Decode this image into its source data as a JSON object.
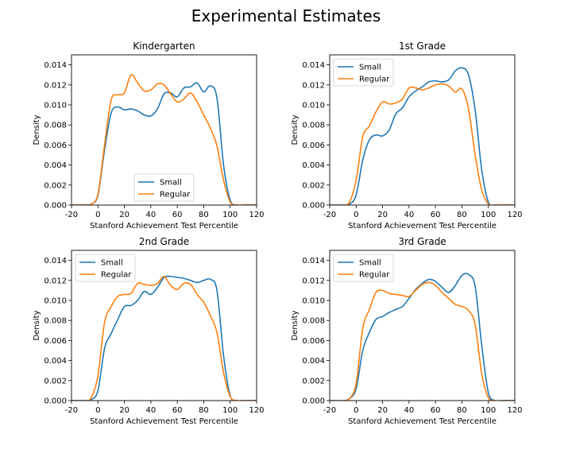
{
  "figure_title": "Experimental Estimates",
  "series_colors": {
    "Small": "#1f77b4",
    "Regular": "#ff7f0e"
  },
  "chart_data": [
    {
      "type": "line",
      "title": "Kindergarten",
      "xlabel": "Stanford Achievement Test Percentile",
      "ylabel": "Density",
      "xlim": [
        -20,
        120
      ],
      "ylim": [
        0,
        0.015
      ],
      "xticks": [
        -20,
        0,
        20,
        40,
        60,
        80,
        100,
        120
      ],
      "yticks": [
        0.0,
        0.002,
        0.004,
        0.006,
        0.008,
        0.01,
        0.012,
        0.014
      ],
      "legend_position": "lower-center",
      "x": [
        -20,
        -10,
        -5,
        0,
        5,
        10,
        15,
        20,
        25,
        30,
        35,
        40,
        45,
        50,
        55,
        60,
        65,
        70,
        75,
        80,
        85,
        90,
        95,
        100,
        105,
        110,
        120
      ],
      "series": [
        {
          "name": "Small",
          "values": [
            0,
            0,
            0.0001,
            0.001,
            0.0055,
            0.0092,
            0.0098,
            0.0095,
            0.0096,
            0.0094,
            0.009,
            0.0089,
            0.0096,
            0.0111,
            0.0112,
            0.0108,
            0.0117,
            0.0118,
            0.0122,
            0.0113,
            0.0119,
            0.0107,
            0.004,
            0.0005,
            0,
            0,
            0
          ]
        },
        {
          "name": "Regular",
          "values": [
            0,
            0,
            0.0001,
            0.0011,
            0.006,
            0.0105,
            0.011,
            0.0112,
            0.013,
            0.0122,
            0.0114,
            0.0115,
            0.0121,
            0.012,
            0.0111,
            0.0103,
            0.0106,
            0.0112,
            0.0103,
            0.009,
            0.0077,
            0.0059,
            0.0025,
            0.0003,
            0,
            0,
            0
          ]
        }
      ]
    },
    {
      "type": "line",
      "title": "1st Grade",
      "xlabel": "Stanford Achievement Test Percentile",
      "ylabel": "Density",
      "xlim": [
        -20,
        120
      ],
      "ylim": [
        0,
        0.015
      ],
      "xticks": [
        -20,
        0,
        20,
        40,
        60,
        80,
        100,
        120
      ],
      "yticks": [
        0.0,
        0.002,
        0.004,
        0.006,
        0.008,
        0.01,
        0.012,
        0.014
      ],
      "legend_position": "upper-left",
      "x": [
        -20,
        -10,
        -5,
        0,
        5,
        10,
        15,
        20,
        25,
        30,
        35,
        40,
        45,
        50,
        55,
        60,
        65,
        70,
        75,
        80,
        85,
        90,
        95,
        100,
        105,
        110,
        120
      ],
      "series": [
        {
          "name": "Small",
          "values": [
            0,
            0,
            0.0001,
            0.001,
            0.0045,
            0.0065,
            0.007,
            0.0069,
            0.0075,
            0.0091,
            0.0097,
            0.0108,
            0.0114,
            0.0118,
            0.0123,
            0.0124,
            0.0123,
            0.0125,
            0.0134,
            0.0137,
            0.013,
            0.0095,
            0.0035,
            0.0003,
            0,
            0,
            0
          ]
        },
        {
          "name": "Regular",
          "values": [
            0,
            0,
            0.0003,
            0.0025,
            0.0068,
            0.0079,
            0.0093,
            0.0103,
            0.0101,
            0.0102,
            0.0106,
            0.0117,
            0.0117,
            0.0115,
            0.0117,
            0.012,
            0.0121,
            0.0119,
            0.0113,
            0.0116,
            0.0096,
            0.005,
            0.0015,
            0.0001,
            0,
            0,
            0
          ]
        }
      ]
    },
    {
      "type": "line",
      "title": "2nd Grade",
      "xlabel": "Stanford Achievement Test Percentile",
      "ylabel": "Density",
      "xlim": [
        -20,
        120
      ],
      "ylim": [
        0,
        0.015
      ],
      "xticks": [
        -20,
        0,
        20,
        40,
        60,
        80,
        100,
        120
      ],
      "yticks": [
        0.0,
        0.002,
        0.004,
        0.006,
        0.008,
        0.01,
        0.012,
        0.014
      ],
      "legend_position": "upper-left",
      "x": [
        -20,
        -10,
        -5,
        0,
        5,
        10,
        15,
        20,
        25,
        30,
        35,
        40,
        45,
        50,
        55,
        60,
        65,
        70,
        75,
        80,
        85,
        90,
        95,
        100,
        105,
        110,
        120
      ],
      "series": [
        {
          "name": "Small",
          "values": [
            0,
            0,
            0.0001,
            0.001,
            0.0052,
            0.0067,
            0.0081,
            0.0094,
            0.0095,
            0.01,
            0.0109,
            0.0106,
            0.0113,
            0.0123,
            0.0124,
            0.0123,
            0.0122,
            0.012,
            0.0118,
            0.012,
            0.0121,
            0.011,
            0.0045,
            0.0005,
            0,
            0,
            0
          ]
        },
        {
          "name": "Regular",
          "values": [
            0,
            0,
            0.0003,
            0.0025,
            0.0078,
            0.0094,
            0.0104,
            0.0106,
            0.0107,
            0.0117,
            0.0116,
            0.0115,
            0.0117,
            0.0124,
            0.0115,
            0.0111,
            0.0117,
            0.0116,
            0.0106,
            0.0098,
            0.0085,
            0.0068,
            0.0028,
            0.0004,
            0,
            0,
            0
          ]
        }
      ]
    },
    {
      "type": "line",
      "title": "3rd Grade",
      "xlabel": "Stanford Achievement Test Percentile",
      "ylabel": "Density",
      "xlim": [
        -20,
        120
      ],
      "ylim": [
        0,
        0.015
      ],
      "xticks": [
        -20,
        0,
        20,
        40,
        60,
        80,
        100,
        120
      ],
      "yticks": [
        0.0,
        0.002,
        0.004,
        0.006,
        0.008,
        0.01,
        0.012,
        0.014
      ],
      "legend_position": "upper-left",
      "x": [
        -20,
        -10,
        -5,
        0,
        5,
        10,
        15,
        20,
        25,
        30,
        35,
        40,
        45,
        50,
        55,
        60,
        65,
        70,
        75,
        80,
        85,
        90,
        95,
        100,
        105,
        110,
        120
      ],
      "series": [
        {
          "name": "Small",
          "values": [
            0,
            0,
            0.0002,
            0.0012,
            0.005,
            0.0068,
            0.0081,
            0.0084,
            0.0088,
            0.0091,
            0.0094,
            0.0102,
            0.0111,
            0.0117,
            0.0121,
            0.0119,
            0.0113,
            0.0108,
            0.0115,
            0.0125,
            0.0126,
            0.0114,
            0.0055,
            0.0008,
            0,
            0,
            0
          ]
        },
        {
          "name": "Regular",
          "values": [
            0,
            0,
            0.0002,
            0.0017,
            0.0072,
            0.0091,
            0.0108,
            0.011,
            0.0107,
            0.0106,
            0.0105,
            0.0104,
            0.011,
            0.0116,
            0.0118,
            0.0115,
            0.0108,
            0.0102,
            0.0096,
            0.0094,
            0.009,
            0.0076,
            0.0027,
            0.0003,
            0,
            0,
            0
          ]
        }
      ]
    }
  ]
}
